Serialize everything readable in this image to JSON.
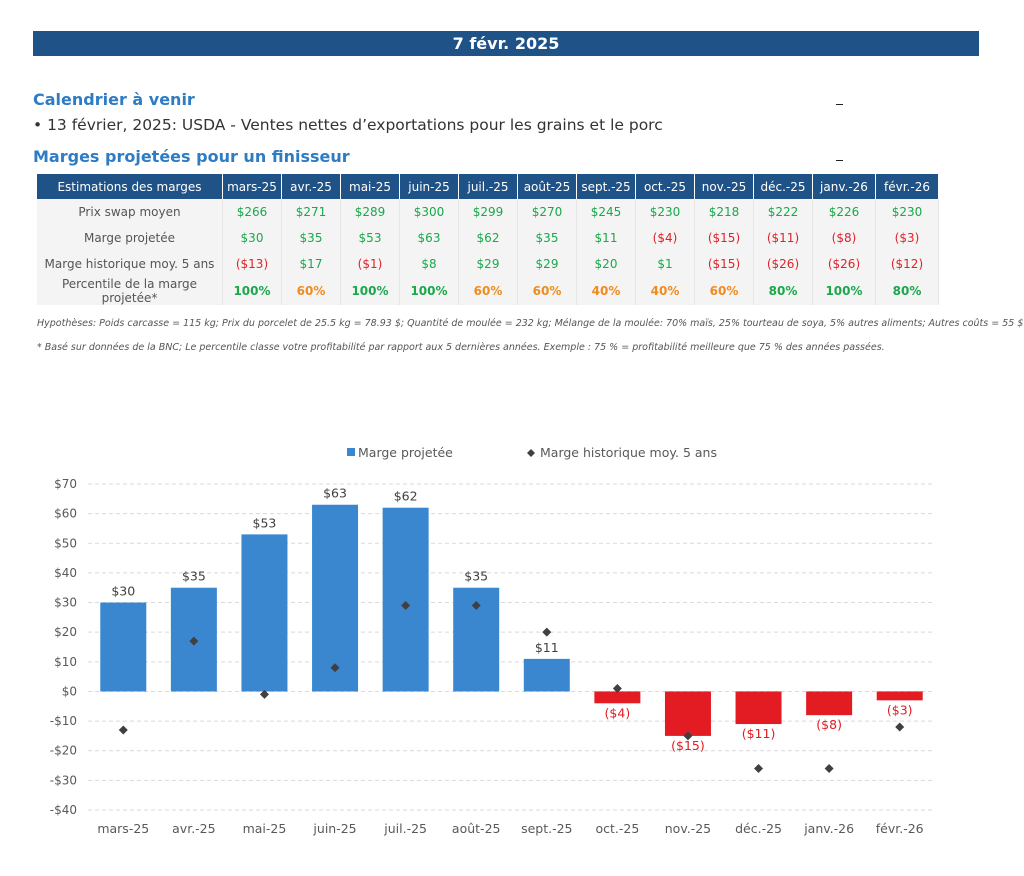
{
  "header": {
    "date": "7 févr. 2025"
  },
  "calendar": {
    "title": "Calendrier à venir",
    "bullet": "• 13 février, 2025: USDA - Ventes nettes d’exportations pour les grains et le porc"
  },
  "margins": {
    "title": "Marges projetées pour un finisseur",
    "header_label": "Estimations des marges",
    "months": [
      "mars-25",
      "avr.-25",
      "mai-25",
      "juin-25",
      "juil.-25",
      "août-25",
      "sept.-25",
      "oct.-25",
      "nov.-25",
      "déc.-25",
      "janv.-26",
      "févr.-26"
    ],
    "rows": [
      {
        "label": "Prix swap moyen",
        "values": [
          "$266",
          "$271",
          "$289",
          "$300",
          "$299",
          "$270",
          "$245",
          "$230",
          "$218",
          "$222",
          "$226",
          "$230"
        ]
      },
      {
        "label": "Marge projetée",
        "values": [
          "$30",
          "$35",
          "$53",
          "$63",
          "$62",
          "$35",
          "$11",
          "($4)",
          "($15)",
          "($11)",
          "($8)",
          "($3)"
        ]
      },
      {
        "label": "Marge historique moy. 5 ans",
        "values": [
          "($13)",
          "$17",
          "($1)",
          "$8",
          "$29",
          "$29",
          "$20",
          "$1",
          "($15)",
          "($26)",
          "($26)",
          "($12)"
        ]
      },
      {
        "label": "Percentile de la marge projetée*",
        "values": [
          "100%",
          "60%",
          "100%",
          "100%",
          "60%",
          "60%",
          "40%",
          "40%",
          "60%",
          "80%",
          "100%",
          "80%"
        ]
      }
    ],
    "hypotheses": "Hypothèses: Poids carcasse = 115 kg; Prix du porcelet de 25.5 kg = 78.93 $; Quantité de moulée = 232 kg; Mélange de la moulée: 70% maïs, 25% tourteau de soya, 5% autres aliments; Autres coûts = 55 $",
    "footnote": "* Basé sur données de la BNC; Le percentile classe votre profitabilité par rapport aux 5 dernières années. Exemple : 75 % = profitabilité meilleure que 75 % des années passées."
  },
  "colors": {
    "banner": "#1f5287",
    "heading": "#2e7cc4",
    "bar_positive": "#3a87cf",
    "bar_negative": "#e31b23",
    "marker": "#404040",
    "green": "#1aa84b",
    "orange": "#f08c1e",
    "red": "#e0222a"
  },
  "chart_data": {
    "type": "bar",
    "categories": [
      "mars-25",
      "avr.-25",
      "mai-25",
      "juin-25",
      "juil.-25",
      "août-25",
      "sept.-25",
      "oct.-25",
      "nov.-25",
      "déc.-25",
      "janv.-26",
      "févr.-26"
    ],
    "series": [
      {
        "name": "Marge projetée",
        "type": "bar",
        "values": [
          30,
          35,
          53,
          63,
          62,
          35,
          11,
          -4,
          -15,
          -11,
          -8,
          -3
        ],
        "labels": [
          "$30",
          "$35",
          "$53",
          "$63",
          "$62",
          "$35",
          "$11",
          "($4)",
          "($15)",
          "($11)",
          "($8)",
          "($3)"
        ]
      },
      {
        "name": "Marge historique moy. 5 ans",
        "type": "scatter",
        "marker": "diamond",
        "values": [
          -13,
          17,
          -1,
          8,
          29,
          29,
          20,
          1,
          -15,
          -26,
          -26,
          -12
        ]
      }
    ],
    "ylim": [
      -40,
      70
    ],
    "yticks": [
      70,
      60,
      50,
      40,
      30,
      20,
      10,
      0,
      -10,
      -20,
      -30,
      -40
    ],
    "ytick_labels": [
      "$70",
      "$60",
      "$50",
      "$40",
      "$30",
      "$20",
      "$10",
      "$0",
      "-$10",
      "-$20",
      "-$30",
      "-$40"
    ],
    "grid": true,
    "legend_position": "top-center"
  }
}
